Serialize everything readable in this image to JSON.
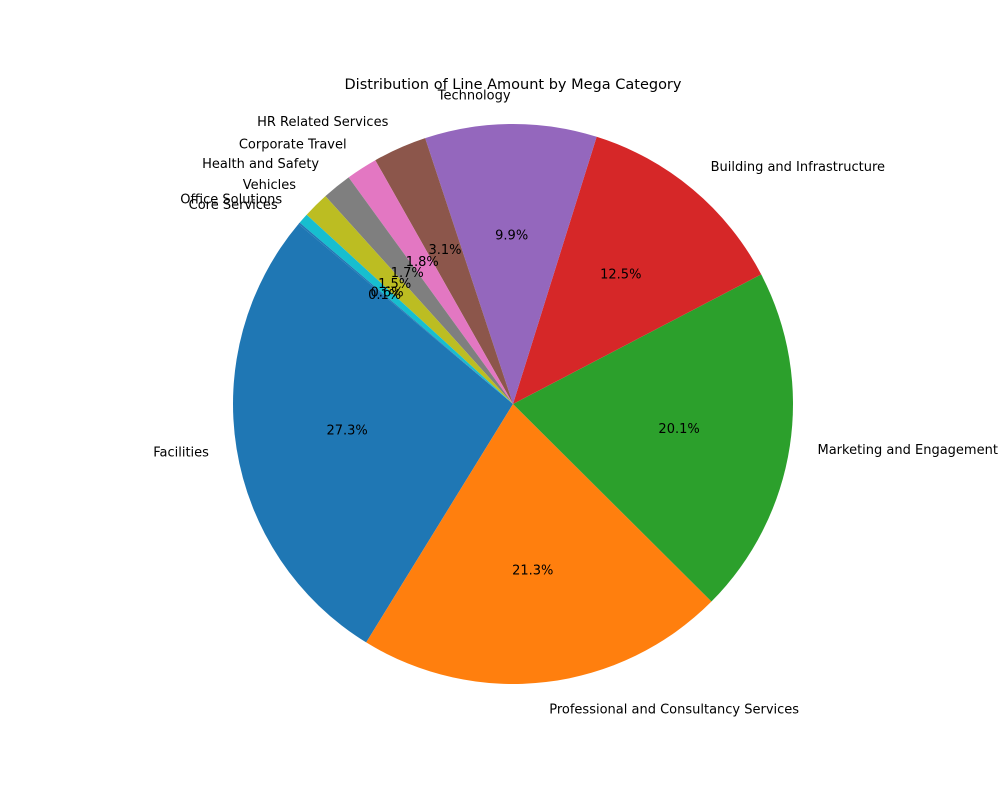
{
  "chart_data": {
    "type": "pie",
    "title": "Distribution of Line Amount by Mega Category",
    "slices": [
      {
        "name": "Facilities",
        "value": 27.3,
        "label": "27.3%",
        "color": "#1f77b4"
      },
      {
        "name": "Professional and Consultancy Services",
        "value": 21.3,
        "label": "21.3%",
        "color": "#ff7f0e"
      },
      {
        "name": "Marketing and Engagement",
        "value": 20.1,
        "label": "20.1%",
        "color": "#2ca02c"
      },
      {
        "name": "Building and Infrastructure",
        "value": 12.5,
        "label": "12.5%",
        "color": "#d62728"
      },
      {
        "name": "Technology",
        "value": 9.9,
        "label": "9.9%",
        "color": "#9467bd"
      },
      {
        "name": "HR Related Services",
        "value": 3.1,
        "label": "3.1%",
        "color": "#8c564b"
      },
      {
        "name": "Corporate Travel",
        "value": 1.8,
        "label": "1.8%",
        "color": "#e377c2"
      },
      {
        "name": "Health and Safety",
        "value": 1.7,
        "label": "1.7%",
        "color": "#7f7f7f"
      },
      {
        "name": "Vehicles",
        "value": 1.5,
        "label": "1.5%",
        "color": "#bcbd22"
      },
      {
        "name": "Office Solutions",
        "value": 0.6,
        "label": "0.6%",
        "color": "#17becf"
      },
      {
        "name": "Core Services",
        "value": 0.1,
        "label": "0.1%",
        "color": "#1f77b4"
      }
    ],
    "start_angle_deg": 140,
    "direction": "counterclockwise",
    "legend": "none"
  }
}
